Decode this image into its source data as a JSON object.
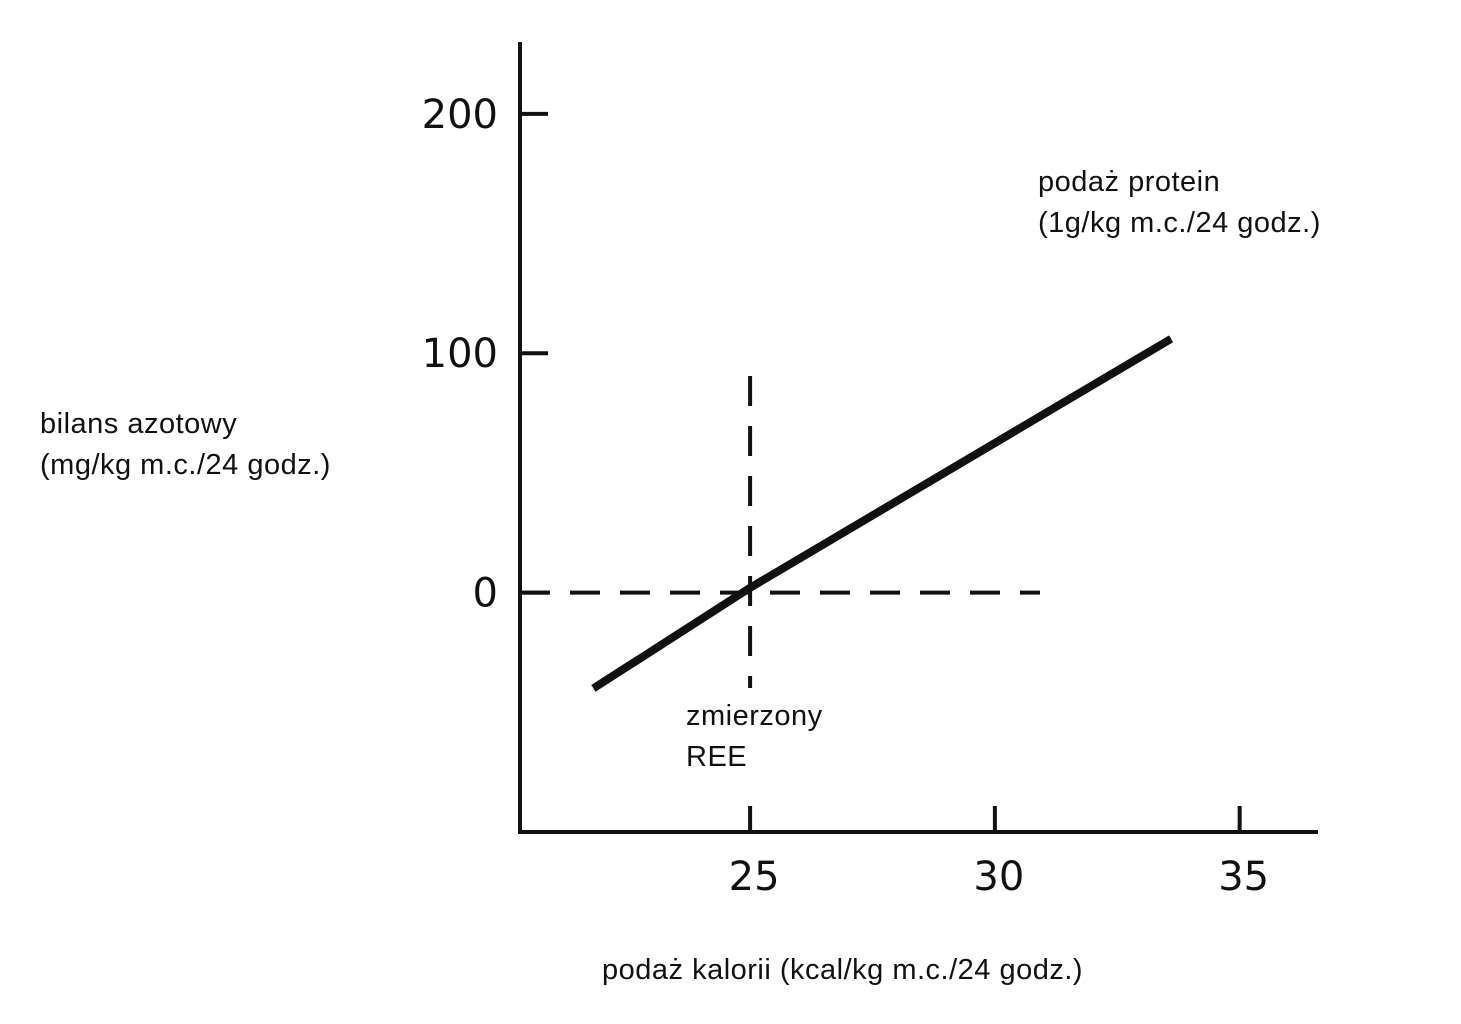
{
  "chart_data": {
    "type": "line",
    "ylabel": [
      "bilans azotowy",
      "(mg/kg m.c./24 godz.)"
    ],
    "xlabel": "podaż kalorii (kcal/kg m.c./24 godz.)",
    "xlim": [
      20.3,
      36.6
    ],
    "ylim": [
      -100,
      230
    ],
    "x_ticks": [
      25,
      30,
      35
    ],
    "y_ticks": [
      0,
      100,
      200
    ],
    "series": [
      {
        "name": "podaż protein\n(1g/kg m.c./24 godz.)",
        "x": [
          21.8,
          25.0,
          33.6
        ],
        "y": [
          -40,
          2,
          106
        ]
      }
    ],
    "annotations": {
      "series_label": [
        "podaż protein",
        "(1g/kg m.c./24 godz.)"
      ],
      "reference_x": {
        "x": 25,
        "label": [
          "zmierzony",
          "REE"
        ]
      },
      "reference_y": {
        "y": 0
      }
    },
    "grid": false,
    "legend": "none"
  },
  "colors": {
    "ink": "#111111",
    "background": "#ffffff"
  }
}
